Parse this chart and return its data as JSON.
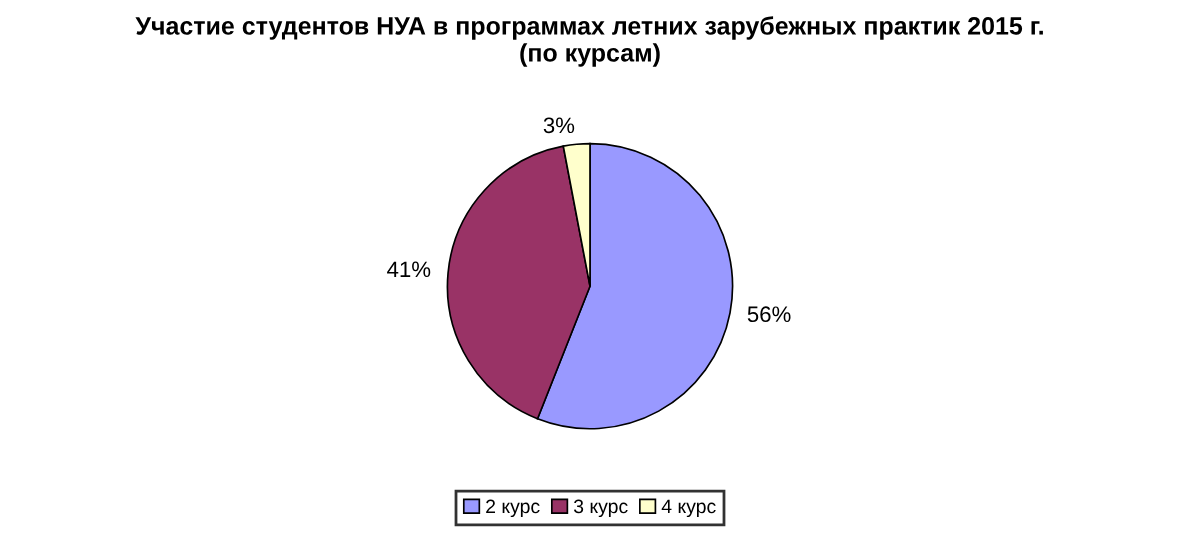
{
  "chart_data": {
    "type": "pie",
    "title": "Участие студентов НУА в программах летних зарубежных практик 2015 г.\n(по курсам)",
    "categories": [
      "2 курс",
      "3 курс",
      "4 курс"
    ],
    "values": [
      56,
      41,
      3
    ],
    "value_labels": [
      "56%",
      "41%",
      "3%"
    ],
    "colors": [
      "#9999ff",
      "#993366",
      "#ffffcc"
    ],
    "legend": "bottom"
  }
}
